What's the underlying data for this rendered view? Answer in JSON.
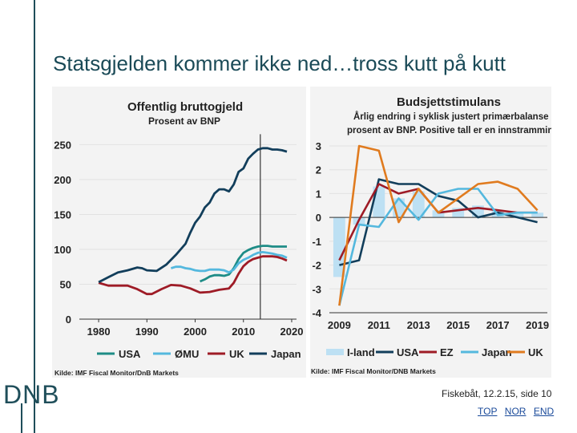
{
  "slide": {
    "title": "Statsgjelden kommer ikke ned…tross kutt på kutt",
    "logo": "DNB",
    "footer": "Fiskebåt, 12.2.15, side 10",
    "links": [
      "TOP",
      "NOR",
      "END"
    ]
  },
  "chart_data": [
    {
      "type": "line",
      "title": "Offentlig bruttogjeld",
      "subtitle": "Prosent av BNP",
      "source": "Kilde: IMF Fiscal Monitor/DnB Markets",
      "xlim": [
        1976,
        2021
      ],
      "ylim": [
        0,
        270
      ],
      "xticks": [
        1980,
        1990,
        2000,
        2010,
        2020
      ],
      "yticks": [
        0,
        50,
        100,
        150,
        200,
        250
      ],
      "vline_x": 2013.5,
      "series": [
        {
          "name": "USA",
          "color": "#1e8c86",
          "points": [
            [
              2001,
              54
            ],
            [
              2002,
              57
            ],
            [
              2003,
              61
            ],
            [
              2004,
              63
            ],
            [
              2005,
              63
            ],
            [
              2006,
              62
            ],
            [
              2007,
              64
            ],
            [
              2008,
              73
            ],
            [
              2009,
              86
            ],
            [
              2010,
              95
            ],
            [
              2011,
              99
            ],
            [
              2012,
              102
            ],
            [
              2013,
              104
            ],
            [
              2014,
              105
            ],
            [
              2015,
              105
            ],
            [
              2016,
              104
            ],
            [
              2017,
              104
            ],
            [
              2018,
              104
            ],
            [
              2019,
              104
            ]
          ]
        },
        {
          "name": "ØMU",
          "color": "#54b8de",
          "points": [
            [
              1995,
              73
            ],
            [
              1996,
              75
            ],
            [
              1997,
              75
            ],
            [
              1998,
              73
            ],
            [
              1999,
              72
            ],
            [
              2000,
              70
            ],
            [
              2001,
              69
            ],
            [
              2002,
              69
            ],
            [
              2003,
              71
            ],
            [
              2004,
              71
            ],
            [
              2005,
              71
            ],
            [
              2006,
              70
            ],
            [
              2007,
              67
            ],
            [
              2008,
              71
            ],
            [
              2009,
              80
            ],
            [
              2010,
              85
            ],
            [
              2011,
              88
            ],
            [
              2012,
              92
            ],
            [
              2013,
              95
            ],
            [
              2014,
              96
            ],
            [
              2015,
              95
            ],
            [
              2016,
              94
            ],
            [
              2017,
              92
            ],
            [
              2018,
              91
            ],
            [
              2019,
              88
            ]
          ]
        },
        {
          "name": "UK",
          "color": "#9e1b26",
          "points": [
            [
              1980,
              52
            ],
            [
              1982,
              48
            ],
            [
              1984,
              48
            ],
            [
              1986,
              48
            ],
            [
              1988,
              43
            ],
            [
              1990,
              36
            ],
            [
              1991,
              36
            ],
            [
              1993,
              43
            ],
            [
              1995,
              49
            ],
            [
              1997,
              48
            ],
            [
              1999,
              44
            ],
            [
              2001,
              38
            ],
            [
              2003,
              39
            ],
            [
              2005,
              42
            ],
            [
              2007,
              44
            ],
            [
              2008,
              52
            ],
            [
              2009,
              65
            ],
            [
              2010,
              76
            ],
            [
              2011,
              82
            ],
            [
              2012,
              86
            ],
            [
              2013,
              88
            ],
            [
              2014,
              90
            ],
            [
              2015,
              90
            ],
            [
              2016,
              90
            ],
            [
              2017,
              89
            ],
            [
              2018,
              87
            ],
            [
              2019,
              84
            ]
          ]
        },
        {
          "name": "Japan",
          "color": "#123e5b",
          "points": [
            [
              1980,
              53
            ],
            [
              1982,
              60
            ],
            [
              1984,
              67
            ],
            [
              1986,
              70
            ],
            [
              1988,
              74
            ],
            [
              1989,
              73
            ],
            [
              1990,
              70
            ],
            [
              1992,
              69
            ],
            [
              1994,
              78
            ],
            [
              1996,
              92
            ],
            [
              1998,
              108
            ],
            [
              1999,
              124
            ],
            [
              2000,
              138
            ],
            [
              2001,
              147
            ],
            [
              2002,
              160
            ],
            [
              2003,
              167
            ],
            [
              2004,
              180
            ],
            [
              2005,
              186
            ],
            [
              2006,
              186
            ],
            [
              2007,
              183
            ],
            [
              2008,
              193
            ],
            [
              2009,
              211
            ],
            [
              2010,
              216
            ],
            [
              2011,
              230
            ],
            [
              2012,
              237
            ],
            [
              2013,
              243
            ],
            [
              2014,
              245
            ],
            [
              2015,
              245
            ],
            [
              2016,
              243
            ],
            [
              2017,
              243
            ],
            [
              2018,
              242
            ],
            [
              2019,
              240
            ]
          ]
        }
      ]
    },
    {
      "type": "bar",
      "title": "Budsjettstimulans",
      "subtitle_lines": [
        "Årlig endring i syklisk justert primærbalanse i",
        "prosent av BNP. Positive tall er en innstramming"
      ],
      "source": "Kilde: IMF Fiscal Monitor/DNB Markets",
      "xlim": [
        2008.5,
        2019.5
      ],
      "ylim": [
        -4,
        3
      ],
      "xticks": [
        2009,
        2011,
        2013,
        2015,
        2017,
        2019
      ],
      "yticks": [
        -4,
        -3,
        -2,
        -1,
        0,
        1,
        2,
        3
      ],
      "bars": {
        "name": "I-land",
        "color": "#bde0f3",
        "x": [
          2009,
          2010,
          2011,
          2012,
          2013,
          2014,
          2015,
          2016,
          2017,
          2018,
          2019
        ],
        "values": [
          -2.5,
          -0.3,
          1.3,
          0.8,
          1.1,
          0.3,
          0.4,
          0.5,
          0.3,
          0.2,
          0.2
        ]
      },
      "series": [
        {
          "name": "USA",
          "color": "#123e5b",
          "values": [
            -2.0,
            -1.8,
            1.6,
            1.4,
            1.4,
            0.9,
            0.7,
            0.0,
            0.2,
            0.0,
            -0.2
          ]
        },
        {
          "name": "EZ",
          "color": "#9e1b26",
          "values": [
            -1.8,
            -0.1,
            1.4,
            1.0,
            1.2,
            0.2,
            0.3,
            0.4,
            0.3,
            0.2,
            0.2
          ]
        },
        {
          "name": "Japan",
          "color": "#54b8de",
          "values": [
            -3.7,
            -0.3,
            -0.4,
            0.8,
            -0.1,
            1.0,
            1.2,
            1.2,
            0.1,
            0.2,
            0.2
          ]
        },
        {
          "name": "UK",
          "color": "#e07b1f",
          "values": [
            -3.7,
            3.0,
            2.8,
            -0.2,
            1.2,
            0.2,
            0.8,
            1.4,
            1.5,
            1.2,
            0.3
          ]
        }
      ]
    }
  ]
}
